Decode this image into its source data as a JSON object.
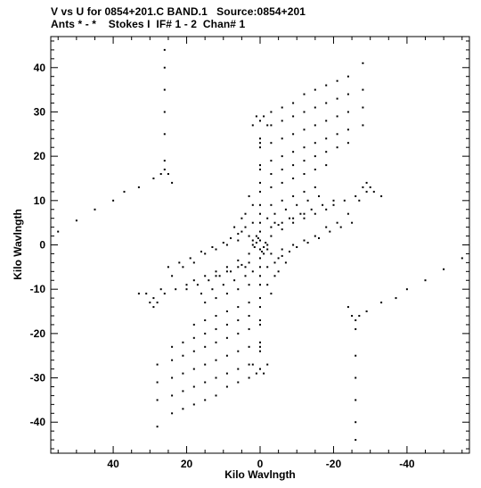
{
  "header": {
    "line1": "V vs U for 0854+201.C BAND.1   Source:0854+201",
    "line2": "Ants * - *    Stokes I  IF# 1 - 2  Chan# 1"
  },
  "chart_data": {
    "type": "scatter",
    "xlabel": "Kilo Wavlngth",
    "ylabel": "Kilo Wavlngth",
    "xlim": [
      57,
      -57
    ],
    "ylim": [
      -47,
      47
    ],
    "x_reversed": true,
    "xticks": [
      40,
      20,
      0,
      -20,
      -40
    ],
    "xtick_labels": [
      "40",
      "20",
      "0",
      "-20",
      "-40"
    ],
    "yticks": [
      40,
      30,
      20,
      10,
      0,
      -10,
      -20,
      -30,
      -40
    ],
    "ytick_labels": [
      "40",
      "30",
      "20",
      "10",
      "0",
      "-10",
      "-20",
      "-30",
      "-40"
    ],
    "grid": false,
    "legend": "none",
    "colors": {
      "points": "#000000",
      "axes": "#000000",
      "background": "#ffffff"
    },
    "series": [
      {
        "points": [
          [
            26,
            44
          ],
          [
            26,
            40
          ],
          [
            26,
            35
          ],
          [
            26,
            30
          ],
          [
            26,
            25
          ],
          [
            26,
            19
          ],
          [
            26,
            17
          ],
          [
            27,
            16
          ],
          [
            25,
            16
          ],
          [
            24,
            14
          ],
          [
            29,
            15
          ],
          [
            33,
            13
          ],
          [
            37,
            12
          ],
          [
            40,
            10
          ],
          [
            45,
            8
          ],
          [
            50,
            5.5
          ],
          [
            55,
            3
          ],
          [
            -26,
            -44
          ],
          [
            -26,
            -40
          ],
          [
            -26,
            -35
          ],
          [
            -26,
            -30
          ],
          [
            -26,
            -25
          ],
          [
            -26,
            -19
          ],
          [
            -26,
            -17
          ],
          [
            -27,
            -16
          ],
          [
            -25,
            -16
          ],
          [
            -24,
            -14
          ],
          [
            -29,
            -15
          ],
          [
            -33,
            -13
          ],
          [
            -37,
            -12
          ],
          [
            -40,
            -10
          ],
          [
            -45,
            -8
          ],
          [
            -50,
            -5.5
          ],
          [
            -55,
            -3
          ],
          [
            1,
            29
          ],
          [
            0,
            28
          ],
          [
            -1,
            29
          ],
          [
            2,
            27
          ],
          [
            -2,
            27
          ],
          [
            0,
            24
          ],
          [
            0,
            23
          ],
          [
            0,
            22
          ],
          [
            0,
            18
          ],
          [
            0,
            17
          ],
          [
            0,
            14
          ],
          [
            0,
            12
          ],
          [
            0,
            9
          ],
          [
            0,
            7
          ],
          [
            0,
            5
          ],
          [
            0,
            3
          ],
          [
            0,
            1
          ],
          [
            1,
            -29
          ],
          [
            0,
            -28
          ],
          [
            -1,
            -29
          ],
          [
            2,
            -27
          ],
          [
            -2,
            -27
          ],
          [
            0,
            -24
          ],
          [
            0,
            -23
          ],
          [
            0,
            -22
          ],
          [
            0,
            -18
          ],
          [
            0,
            -17
          ],
          [
            0,
            -14
          ],
          [
            0,
            -12
          ],
          [
            0,
            -9
          ],
          [
            0,
            -7
          ],
          [
            0,
            -5
          ],
          [
            0,
            -3
          ],
          [
            0,
            -1
          ],
          [
            -3,
            30
          ],
          [
            -6,
            31
          ],
          [
            -9,
            32
          ],
          [
            -12,
            34
          ],
          [
            -15,
            35
          ],
          [
            -18,
            36
          ],
          [
            -21,
            37
          ],
          [
            -24,
            38
          ],
          [
            -28,
            41
          ],
          [
            -3,
            27
          ],
          [
            -6,
            28
          ],
          [
            -9,
            29
          ],
          [
            -12,
            30
          ],
          [
            -15,
            31
          ],
          [
            -18,
            32
          ],
          [
            -21,
            33
          ],
          [
            -24,
            34
          ],
          [
            -28,
            35
          ],
          [
            -3,
            23
          ],
          [
            -6,
            24
          ],
          [
            -9,
            25
          ],
          [
            -12,
            26
          ],
          [
            -15,
            27
          ],
          [
            -18,
            28
          ],
          [
            -21,
            29
          ],
          [
            -24,
            30
          ],
          [
            -28,
            31
          ],
          [
            -3,
            19
          ],
          [
            -6,
            20
          ],
          [
            -9,
            21
          ],
          [
            -12,
            22
          ],
          [
            -15,
            23
          ],
          [
            -18,
            24
          ],
          [
            -21,
            25
          ],
          [
            -24,
            26
          ],
          [
            -28,
            27
          ],
          [
            -3,
            16
          ],
          [
            -6,
            17
          ],
          [
            -9,
            18
          ],
          [
            -12,
            19
          ],
          [
            -15,
            20
          ],
          [
            -18,
            21
          ],
          [
            -21,
            22
          ],
          [
            -24,
            23
          ],
          [
            -3,
            13
          ],
          [
            -6,
            14
          ],
          [
            -9,
            15
          ],
          [
            -12,
            16
          ],
          [
            -15,
            17
          ],
          [
            -18,
            18
          ],
          [
            3,
            -30
          ],
          [
            6,
            -31
          ],
          [
            9,
            -32
          ],
          [
            12,
            -34
          ],
          [
            15,
            -35
          ],
          [
            18,
            -36
          ],
          [
            21,
            -37
          ],
          [
            24,
            -38
          ],
          [
            28,
            -41
          ],
          [
            3,
            -27
          ],
          [
            6,
            -28
          ],
          [
            9,
            -29
          ],
          [
            12,
            -30
          ],
          [
            15,
            -31
          ],
          [
            18,
            -32
          ],
          [
            21,
            -33
          ],
          [
            24,
            -34
          ],
          [
            28,
            -35
          ],
          [
            3,
            -23
          ],
          [
            6,
            -24
          ],
          [
            9,
            -25
          ],
          [
            12,
            -26
          ],
          [
            15,
            -27
          ],
          [
            18,
            -28
          ],
          [
            21,
            -29
          ],
          [
            24,
            -30
          ],
          [
            28,
            -31
          ],
          [
            3,
            -19
          ],
          [
            6,
            -20
          ],
          [
            9,
            -21
          ],
          [
            12,
            -22
          ],
          [
            15,
            -23
          ],
          [
            18,
            -24
          ],
          [
            21,
            -25
          ],
          [
            24,
            -26
          ],
          [
            28,
            -27
          ],
          [
            3,
            -16
          ],
          [
            6,
            -17
          ],
          [
            9,
            -18
          ],
          [
            12,
            -19
          ],
          [
            15,
            -20
          ],
          [
            18,
            -21
          ],
          [
            21,
            -22
          ],
          [
            24,
            -23
          ],
          [
            3,
            -13
          ],
          [
            6,
            -14
          ],
          [
            9,
            -15
          ],
          [
            12,
            -16
          ],
          [
            15,
            -17
          ],
          [
            18,
            -18
          ],
          [
            -30,
            13
          ],
          [
            -29,
            14
          ],
          [
            -28,
            13
          ],
          [
            -26,
            11
          ],
          [
            -23,
            10
          ],
          [
            -20,
            9
          ],
          [
            -18,
            8
          ],
          [
            -15,
            7
          ],
          [
            -12,
            6
          ],
          [
            -9,
            5
          ],
          [
            -6,
            3.5
          ],
          [
            -3,
            2
          ],
          [
            30,
            -13
          ],
          [
            29,
            -14
          ],
          [
            28,
            -13
          ],
          [
            26,
            -11
          ],
          [
            23,
            -10
          ],
          [
            20,
            -9
          ],
          [
            18,
            -8
          ],
          [
            15,
            -7
          ],
          [
            12,
            -6
          ],
          [
            9,
            -5
          ],
          [
            6,
            -3.5
          ],
          [
            3,
            -2
          ],
          [
            -31,
            12
          ],
          [
            -33,
            11
          ],
          [
            31,
            -11
          ],
          [
            33,
            -11
          ],
          [
            -20,
            10
          ],
          [
            -17,
            9
          ],
          [
            -14,
            8
          ],
          [
            -11,
            7
          ],
          [
            -8,
            6
          ],
          [
            -5,
            4.5
          ],
          [
            20,
            -10
          ],
          [
            17,
            -9
          ],
          [
            14,
            -8
          ],
          [
            11,
            -7
          ],
          [
            8,
            -6
          ],
          [
            5,
            -4.5
          ],
          [
            -4,
            7
          ],
          [
            -7,
            8
          ],
          [
            -10,
            9
          ],
          [
            -13,
            10
          ],
          [
            -16,
            11
          ],
          [
            4,
            -7
          ],
          [
            7,
            -8
          ],
          [
            10,
            -9
          ],
          [
            13,
            -10
          ],
          [
            16,
            -11
          ],
          [
            -3,
            9
          ],
          [
            -6,
            10
          ],
          [
            -9,
            11
          ],
          [
            -12,
            12
          ],
          [
            -15,
            13
          ],
          [
            3,
            -9
          ],
          [
            6,
            -10
          ],
          [
            9,
            -11
          ],
          [
            12,
            -12
          ],
          [
            15,
            -13
          ],
          [
            -3,
            4
          ],
          [
            -6,
            5
          ],
          [
            -9,
            6
          ],
          [
            -12,
            7
          ],
          [
            3,
            -4
          ],
          [
            6,
            -5
          ],
          [
            9,
            -6
          ],
          [
            12,
            -7
          ],
          [
            -2,
            6
          ],
          [
            -4,
            5
          ],
          [
            2,
            -6
          ],
          [
            4,
            -5
          ],
          [
            3,
            2
          ],
          [
            6,
            1
          ],
          [
            9,
            0
          ],
          [
            12,
            -1
          ],
          [
            15,
            -2
          ],
          [
            18,
            -4
          ],
          [
            21,
            -5
          ],
          [
            24,
            -7
          ],
          [
            27,
            -10
          ],
          [
            29,
            -12
          ],
          [
            -3,
            -2
          ],
          [
            -6,
            -1
          ],
          [
            -9,
            0
          ],
          [
            -12,
            1
          ],
          [
            -15,
            2
          ],
          [
            -18,
            4
          ],
          [
            -21,
            5
          ],
          [
            -24,
            7
          ],
          [
            -27,
            10
          ],
          [
            -29,
            12
          ],
          [
            4,
            4
          ],
          [
            6,
            2.5
          ],
          [
            8,
            1.5
          ],
          [
            10,
            0.5
          ],
          [
            13,
            -0.5
          ],
          [
            16,
            -1.5
          ],
          [
            19,
            -3
          ],
          [
            22,
            -4
          ],
          [
            25,
            -5
          ],
          [
            -4,
            -4
          ],
          [
            -6,
            -2.5
          ],
          [
            -8,
            -1.5
          ],
          [
            -10,
            -0.5
          ],
          [
            -13,
            0.5
          ],
          [
            -16,
            1.5
          ],
          [
            -19,
            3
          ],
          [
            -22,
            4
          ],
          [
            -25,
            5
          ],
          [
            2,
            5
          ],
          [
            4,
            7
          ],
          [
            2,
            9
          ],
          [
            3,
            11
          ],
          [
            -2,
            -5
          ],
          [
            -4,
            -7
          ],
          [
            -2,
            -9
          ],
          [
            -3,
            -11
          ],
          [
            5,
            3
          ],
          [
            7,
            4
          ],
          [
            5,
            6
          ],
          [
            -5,
            -3
          ],
          [
            -7,
            -4
          ],
          [
            -5,
            -6
          ],
          [
            1,
            0.5
          ],
          [
            -1,
            -0.5
          ],
          [
            1.5,
            -0.5
          ],
          [
            -1.5,
            0.5
          ],
          [
            0.5,
            1.5
          ],
          [
            -0.5,
            -1.5
          ],
          [
            2,
            0
          ],
          [
            -2,
            0
          ],
          [
            1,
            2
          ],
          [
            -1,
            -2
          ],
          [
            2,
            1
          ],
          [
            -2,
            -1
          ]
        ]
      }
    ]
  }
}
